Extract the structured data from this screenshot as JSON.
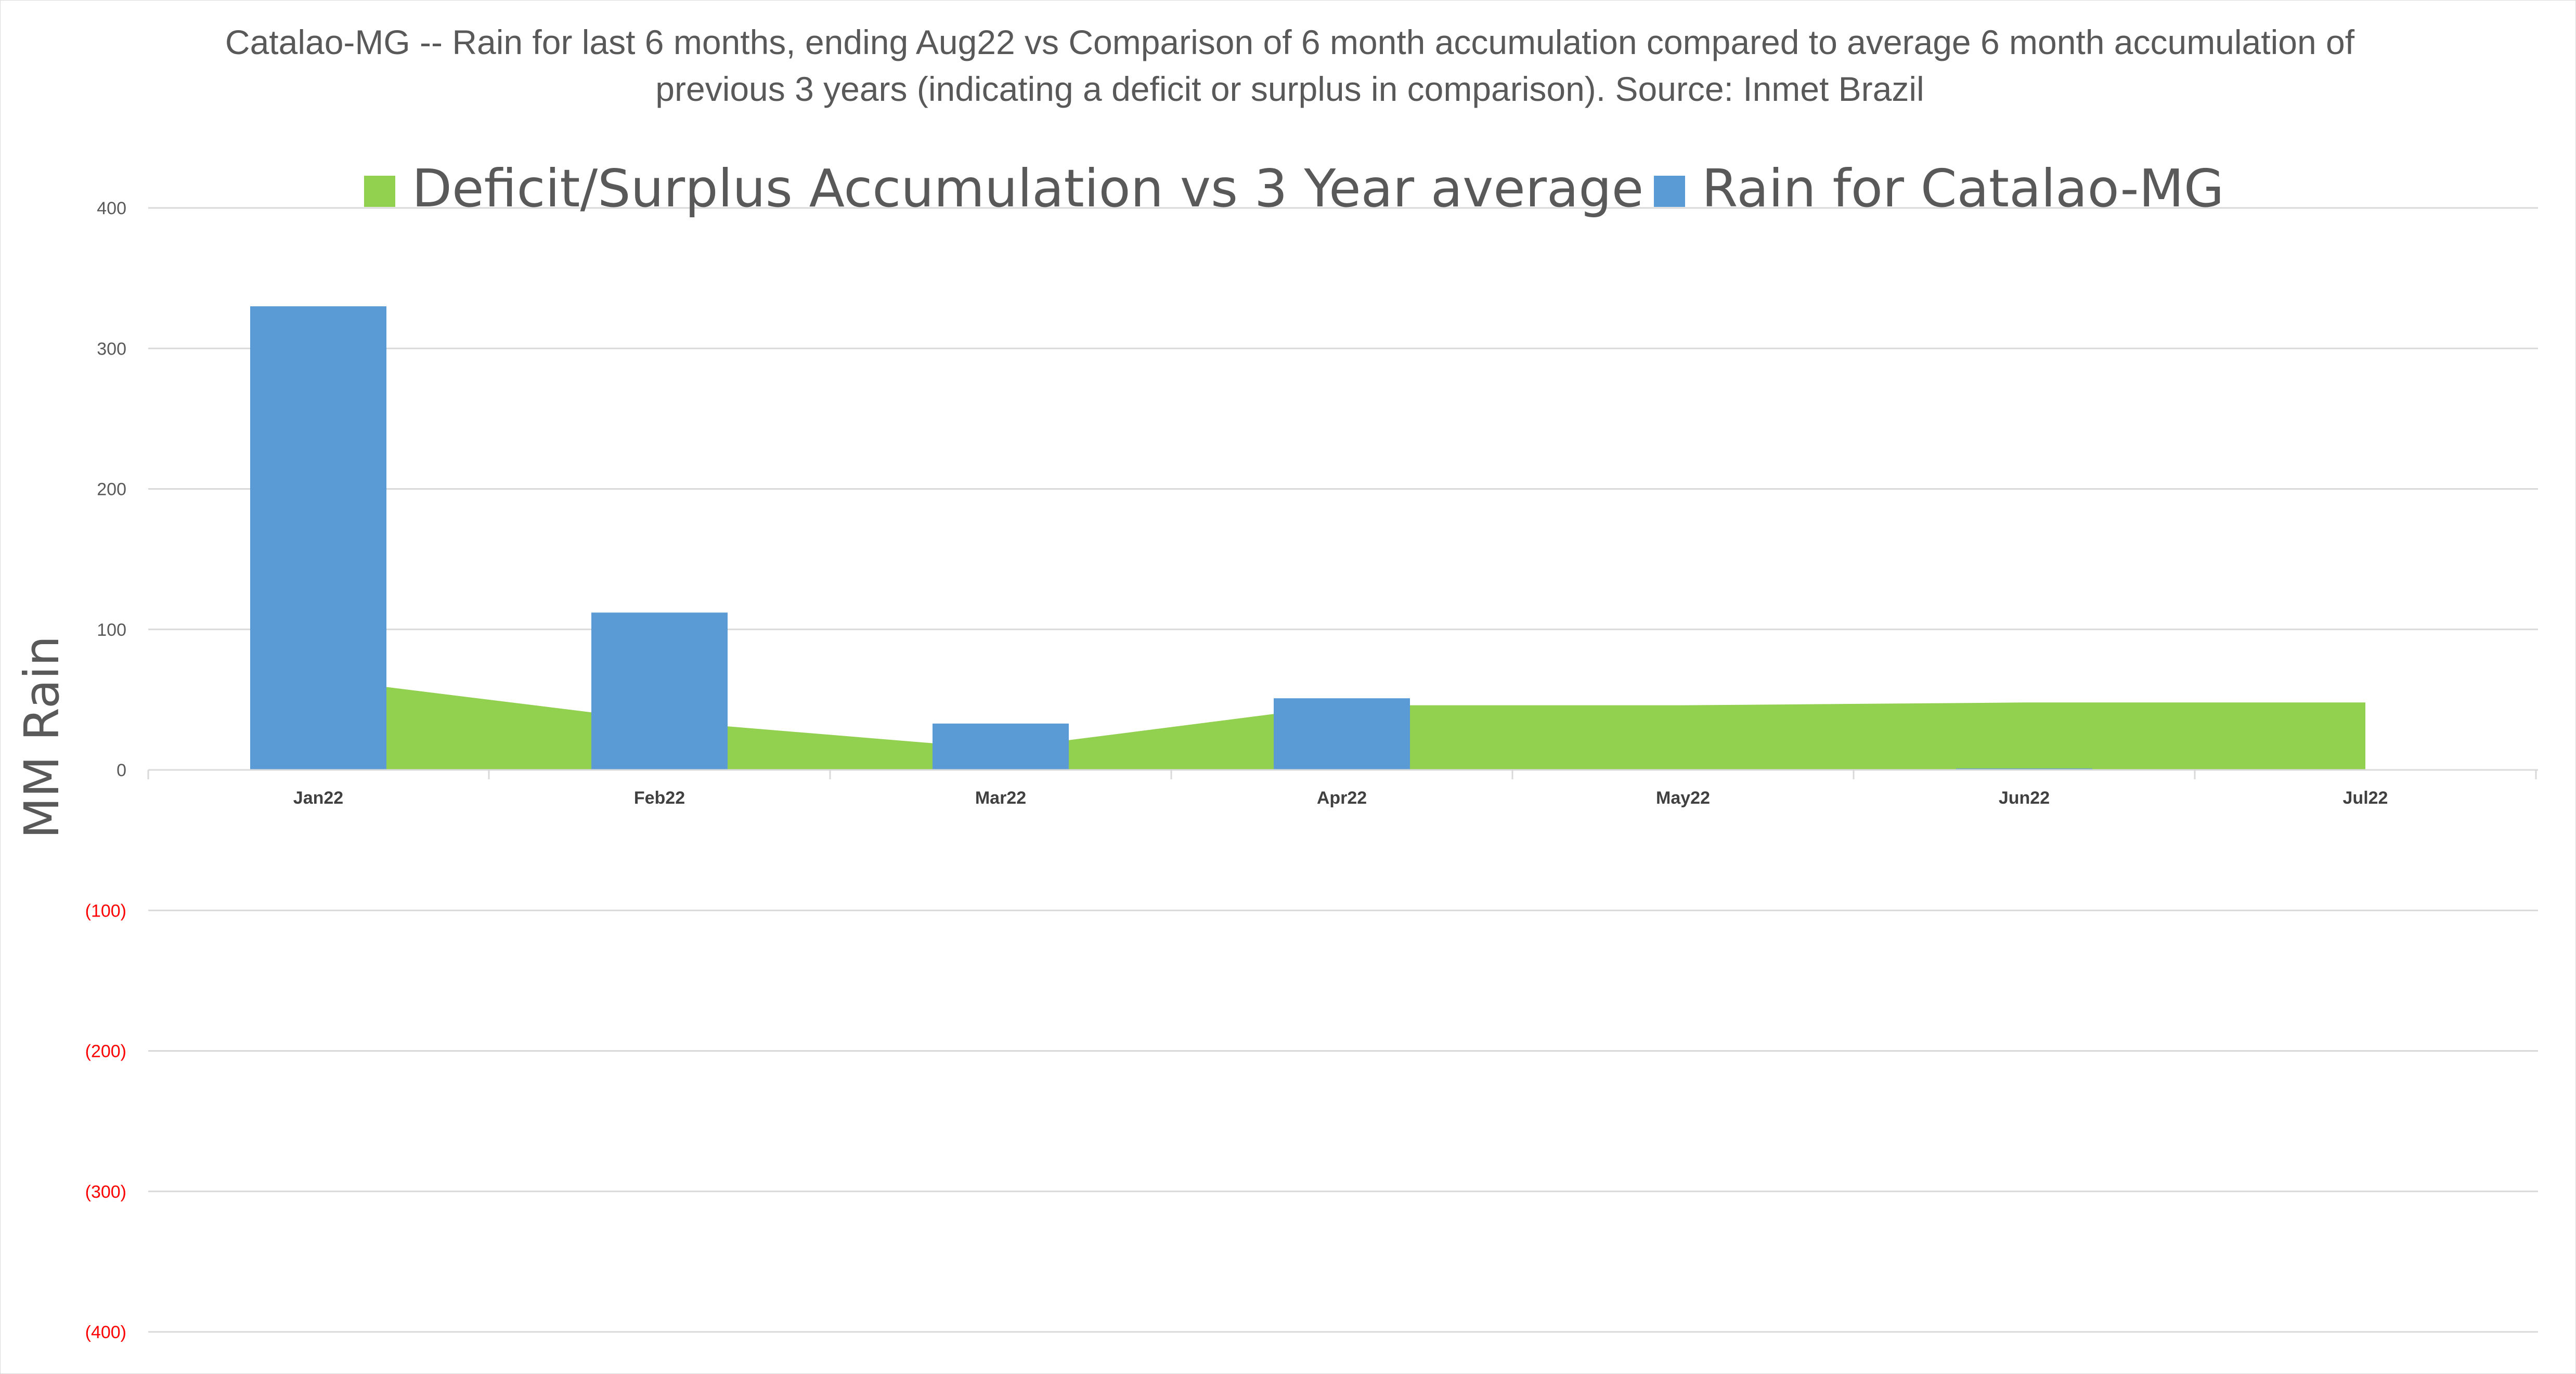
{
  "chart_data": {
    "type": "bar",
    "title": "Catalao-MG -- Rain for last 6 months, ending Aug22  vs Comparison of 6 month accumulation compared to average 6 month accumulation of previous 3 years  (indicating a deficit or surplus in comparison). Source: Inmet Brazil",
    "xlabel": "",
    "ylabel": "MM Rain",
    "ylim": [
      -400,
      400
    ],
    "y_ticks": [
      400,
      300,
      200,
      100,
      0,
      -100,
      -200,
      -300,
      -400
    ],
    "y_tick_labels": [
      "400",
      "300",
      "200",
      "100",
      "0",
      "(100)",
      "(200)",
      "(300)",
      "(400)"
    ],
    "negative_tick_color": "#FF0000",
    "positive_tick_color": "#595959",
    "grid": true,
    "legend_position": "top",
    "categories": [
      "Jan22",
      "Feb22",
      "Mar22",
      "Apr22",
      "May22",
      "Jun22",
      "Jul22"
    ],
    "series": [
      {
        "name": "Deficit/Surplus Accumulation vs 3 Year average",
        "type": "area",
        "color": "#92D050",
        "values": [
          65,
          35,
          15,
          46,
          46,
          48,
          48
        ]
      },
      {
        "name": "Rain for Catalao-MG",
        "type": "bar",
        "color": "#5B9BD5",
        "values": [
          330,
          112,
          33,
          51,
          0,
          1,
          0
        ]
      }
    ]
  }
}
